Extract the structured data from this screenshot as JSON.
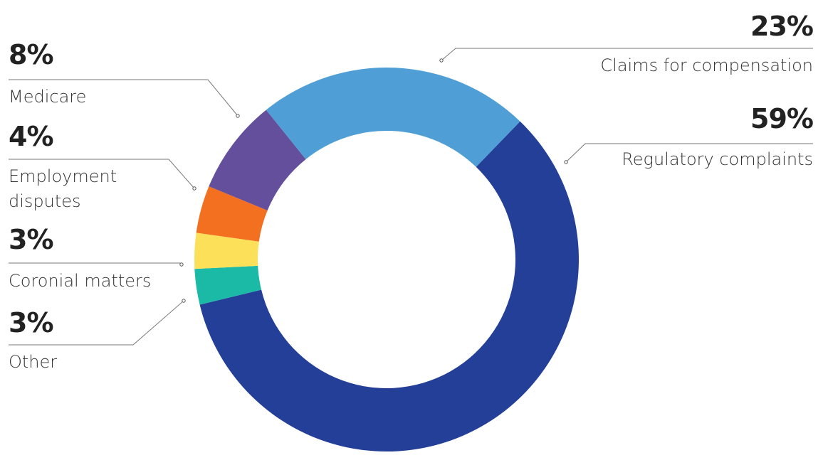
{
  "chart_data": {
    "type": "pie",
    "donut": true,
    "categories": [
      "Regulatory complaints",
      "Other",
      "Coronial matters",
      "Employment disputes",
      "Medicare",
      "Claims for compensation"
    ],
    "values": [
      59,
      3,
      3,
      4,
      8,
      23
    ],
    "value_labels": [
      "59%",
      "3%",
      "3%",
      "4%",
      "8%",
      "23%"
    ],
    "colors": [
      "#233f98",
      "#1bbaa6",
      "#fce05a",
      "#f37021",
      "#634f9b",
      "#4f9fd6"
    ]
  }
}
